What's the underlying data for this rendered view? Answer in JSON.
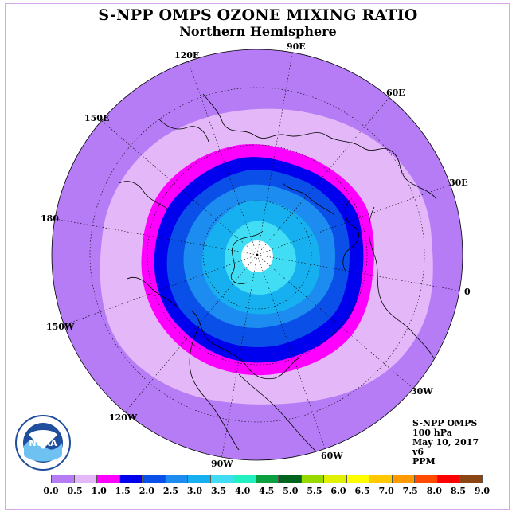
{
  "title": "S-NPP OMPS OZONE MIXING RATIO",
  "subtitle": "Northern Hemisphere",
  "longitude_labels": [
    "90E",
    "60E",
    "30E",
    "0",
    "30W",
    "60W",
    "90W",
    "120W",
    "150W",
    "180",
    "150E",
    "120E"
  ],
  "info": {
    "instrument": "S-NPP OMPS",
    "level": "100 hPa",
    "date": "May 10, 2017",
    "version": "v6",
    "units": "PPM"
  },
  "colorbar": {
    "ticks": [
      "0.0",
      "0.5",
      "1.0",
      "1.5",
      "2.0",
      "2.5",
      "3.0",
      "3.5",
      "4.0",
      "4.5",
      "5.0",
      "5.5",
      "6.0",
      "6.5",
      "7.0",
      "7.5",
      "8.0",
      "8.5",
      "9.0"
    ],
    "colors": [
      "#b57cf5",
      "#e4b8f8",
      "#ff00ff",
      "#0000ee",
      "#0a50e8",
      "#1c8cf0",
      "#16b0f0",
      "#40ddf5",
      "#22f0c0",
      "#0aa040",
      "#00641e",
      "#96d800",
      "#e0f000",
      "#ffff00",
      "#ffc800",
      "#ff9a00",
      "#ff4a00",
      "#ff0000",
      "#8b4513"
    ]
  },
  "logo": {
    "icon": "noaa-logo",
    "text": "NOAA"
  },
  "colors": {
    "background_disk": "#b57cf5",
    "frame_border": "#d8a8e8"
  }
}
